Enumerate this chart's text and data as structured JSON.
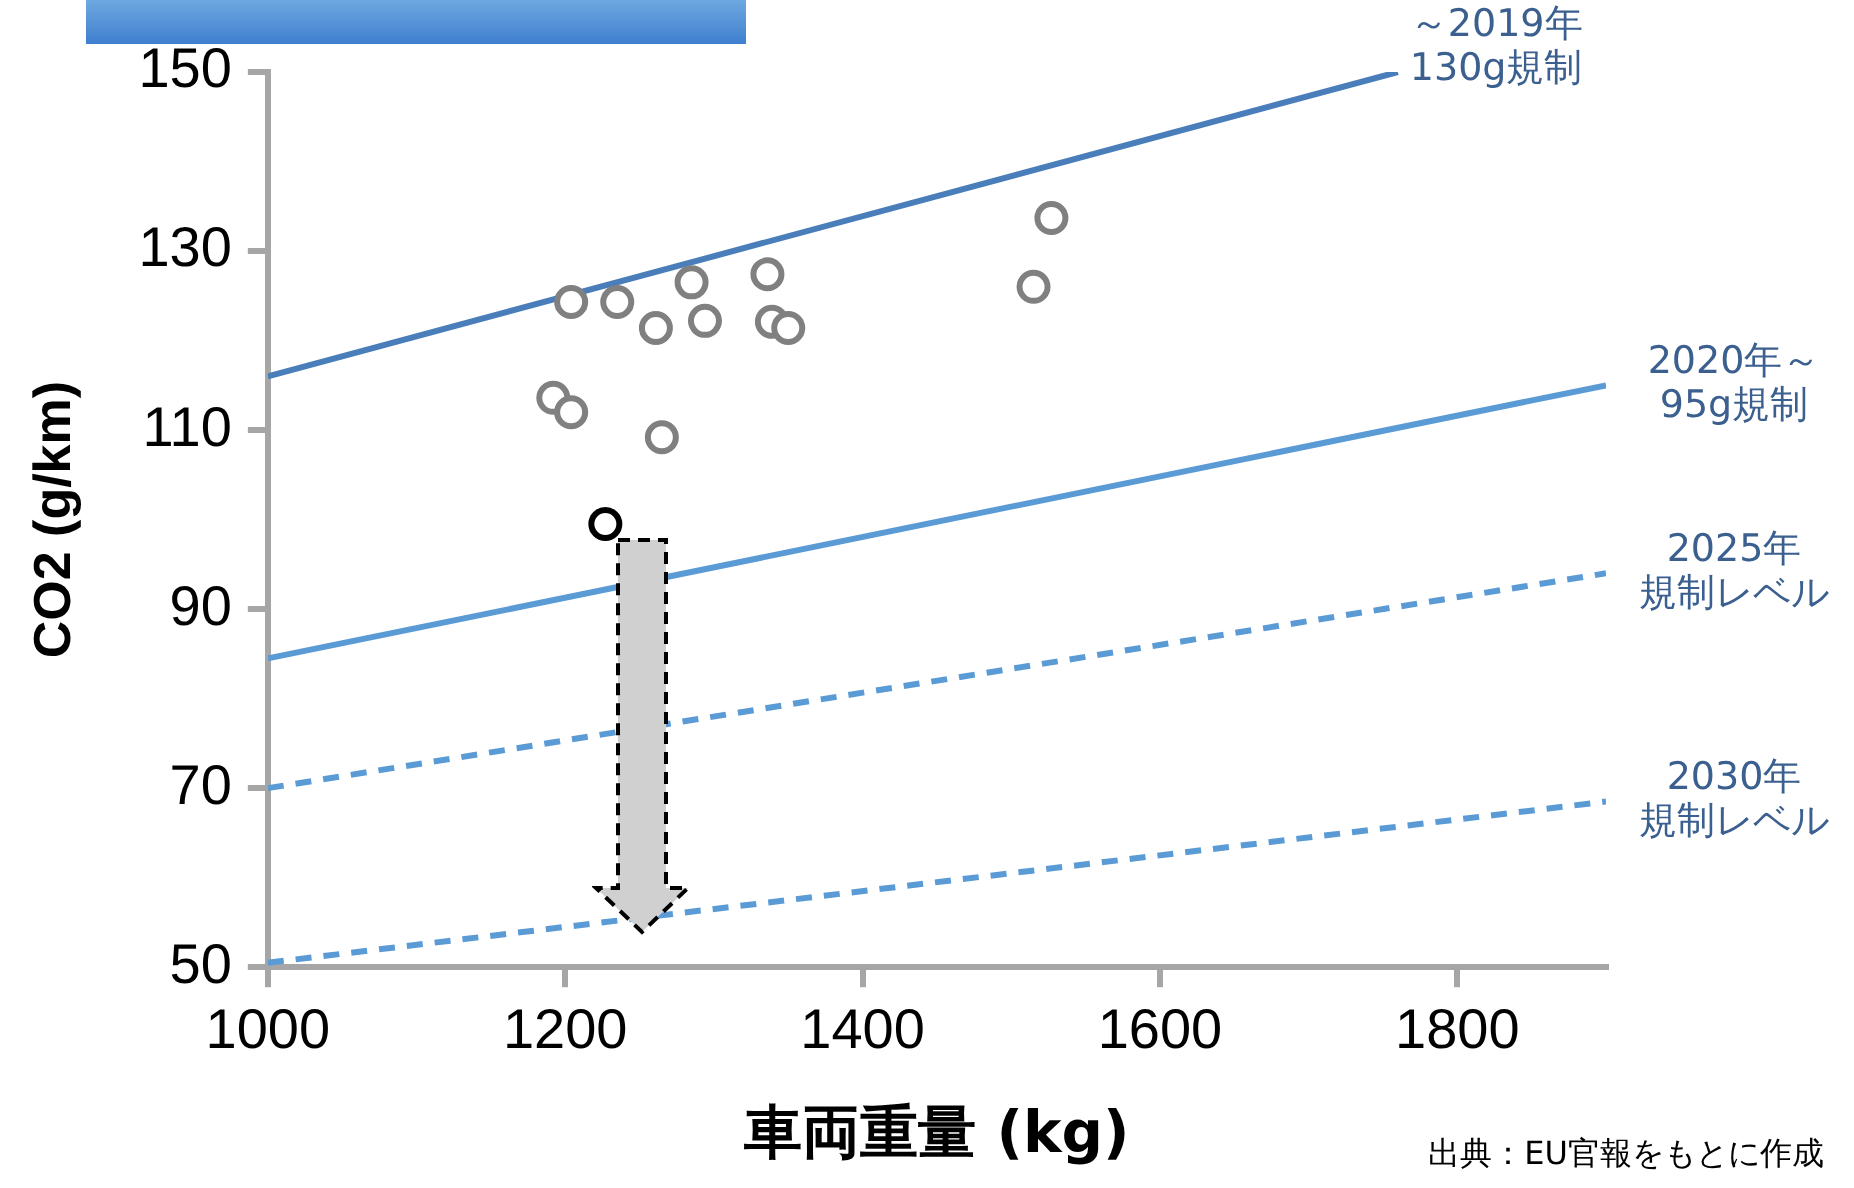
{
  "chart_data": {
    "type": "scatter",
    "xlabel": "車両重量 (kg)",
    "ylabel": "CO2 (g/km)",
    "xlim": [
      1000,
      1900
    ],
    "xticks": [
      1000,
      1200,
      1400,
      1600,
      1800
    ],
    "ylim": [
      50,
      150
    ],
    "yticks": [
      50,
      70,
      90,
      110,
      130,
      150
    ],
    "grid": false,
    "legend": false,
    "marker": "circle",
    "annotations": [
      "出典：EU官報をもとに作成"
    ],
    "series": [
      {
        "type": "line",
        "name": "～2019年130g規制",
        "color": "#4a7ebb",
        "line_style": "solid",
        "marker": "none",
        "x": [
          1000,
          1760
        ],
        "values": [
          116,
          150
        ]
      },
      {
        "type": "line",
        "name": "2020年～95g規制",
        "color": "#5b9bd5",
        "line_style": "solid",
        "marker": "none",
        "x": [
          1000,
          1900
        ],
        "values": [
          84.5,
          115
        ]
      },
      {
        "type": "line",
        "name": "2025年規制レベル",
        "color": "#5b9bd5",
        "line_style": "dashed",
        "marker": "none",
        "x": [
          1000,
          1900
        ],
        "values": [
          70,
          94
        ]
      },
      {
        "type": "line",
        "name": "2030年規制レベル",
        "color": "#5b9bd5",
        "line_style": "dashed",
        "marker": "none",
        "x": [
          1000,
          1900
        ],
        "values": [
          50.5,
          68.5
        ]
      },
      {
        "color": "#808080",
        "x": [
          1204,
          1235,
          1285,
          1336,
          1261,
          1294,
          1339,
          1350,
          1527,
          1515,
          1192,
          1204,
          1265
        ],
        "values": [
          124.3,
          124.3,
          126.5,
          127.4,
          121.4,
          122.2,
          122.1,
          121.4,
          133.7,
          126,
          113.6,
          112,
          109.2
        ]
      },
      {
        "color": "#000000",
        "x": [
          1227
        ],
        "values": [
          99.5
        ]
      }
    ]
  }
}
